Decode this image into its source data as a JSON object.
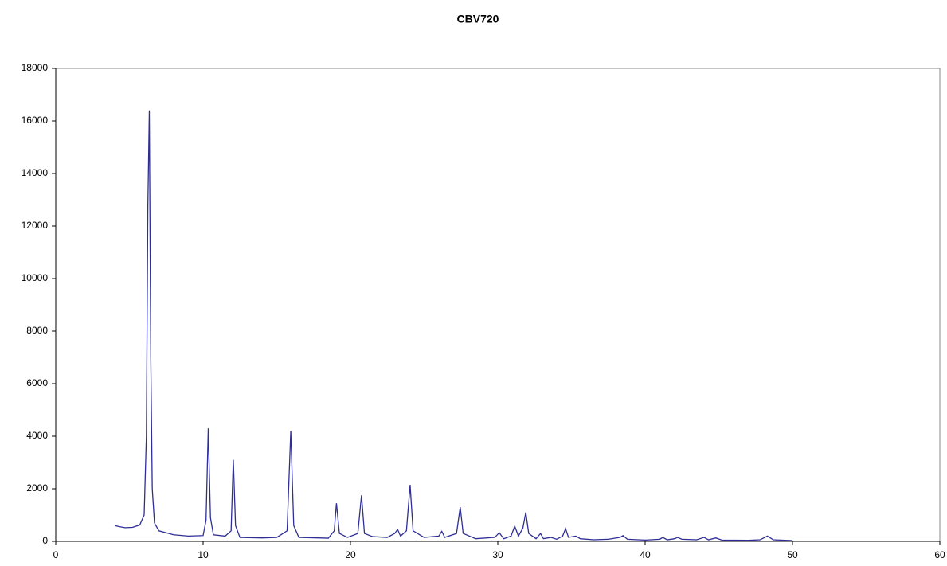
{
  "chart_data": {
    "type": "line",
    "title": "CBV720",
    "x": [
      4.0,
      4.3,
      4.7,
      5.2,
      5.7,
      6.0,
      6.15,
      6.25,
      6.35,
      6.45,
      6.55,
      6.7,
      7.0,
      8,
      9,
      10.0,
      10.2,
      10.35,
      10.5,
      10.7,
      11.5,
      11.9,
      12.05,
      12.2,
      12.5,
      14,
      15.0,
      15.7,
      15.95,
      16.15,
      16.5,
      18.5,
      18.9,
      19.05,
      19.25,
      19.8,
      20.5,
      20.75,
      20.95,
      21.5,
      22.5,
      23.0,
      23.2,
      23.4,
      23.8,
      24.05,
      24.25,
      25,
      26.0,
      26.2,
      26.4,
      27.2,
      27.45,
      27.65,
      28.5,
      29.8,
      30.1,
      30.4,
      30.9,
      31.15,
      31.4,
      31.7,
      31.9,
      32.1,
      32.6,
      32.9,
      33.1,
      33.6,
      34.0,
      34.4,
      34.6,
      34.8,
      35.3,
      35.6,
      36.5,
      37.5,
      38.3,
      38.5,
      38.8,
      40,
      41,
      41.2,
      41.5,
      42,
      42.2,
      42.5,
      43.5,
      44,
      44.3,
      44.8,
      45.2,
      47,
      47.8,
      48.3,
      48.7,
      50
    ],
    "series": [
      {
        "color": "#2e2e96",
        "values": [
          600,
          560,
          520,
          530,
          620,
          1000,
          4000,
          12700,
          16400,
          7000,
          2000,
          700,
          400,
          250,
          200,
          220,
          800,
          4300,
          900,
          250,
          200,
          400,
          3100,
          600,
          150,
          130,
          150,
          400,
          4200,
          600,
          150,
          120,
          400,
          1450,
          300,
          150,
          300,
          1750,
          300,
          180,
          150,
          300,
          450,
          200,
          400,
          2150,
          400,
          150,
          200,
          380,
          150,
          300,
          1300,
          300,
          100,
          150,
          330,
          100,
          200,
          580,
          200,
          500,
          1100,
          300,
          100,
          300,
          100,
          150,
          80,
          200,
          480,
          150,
          200,
          100,
          60,
          80,
          150,
          220,
          80,
          50,
          80,
          150,
          60,
          100,
          150,
          80,
          60,
          150,
          60,
          130,
          50,
          40,
          60,
          200,
          60,
          30
        ]
      }
    ],
    "xlim": [
      0,
      60
    ],
    "xticks": [
      0,
      10,
      20,
      30,
      40,
      50,
      60
    ],
    "ylim": [
      0,
      18000
    ],
    "yticks": [
      0,
      2000,
      4000,
      6000,
      8000,
      10000,
      12000,
      14000,
      16000,
      18000
    ]
  }
}
